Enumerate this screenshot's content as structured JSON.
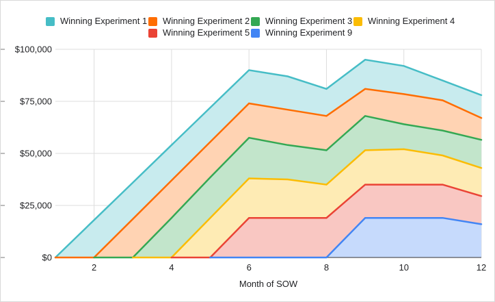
{
  "chart_data": {
    "type": "area",
    "title": "",
    "xlabel": "Month of SOW",
    "ylabel": "",
    "xlim": [
      1,
      12
    ],
    "ylim": [
      0,
      100000
    ],
    "grid": true,
    "legend_position": "top",
    "x": [
      1,
      2,
      3,
      4,
      5,
      6,
      7,
      8,
      9,
      10,
      11,
      12
    ],
    "x_ticks": [
      {
        "value": 2,
        "label": "2"
      },
      {
        "value": 4,
        "label": "4"
      },
      {
        "value": 6,
        "label": "6"
      },
      {
        "value": 8,
        "label": "8"
      },
      {
        "value": 10,
        "label": "10"
      },
      {
        "value": 12,
        "label": "12"
      }
    ],
    "y_ticks": [
      {
        "value": 0,
        "label": "$0"
      },
      {
        "value": 25000,
        "label": "$25,000"
      },
      {
        "value": 50000,
        "label": "$50,000"
      },
      {
        "value": 75000,
        "label": "$75,000"
      },
      {
        "value": 100000,
        "label": "$100,000"
      }
    ],
    "series": [
      {
        "name": "Winning Experiment 1",
        "color": "#46BDC6",
        "fill": "#C8EBEE",
        "values": [
          0,
          18000,
          36000,
          54000,
          72000,
          90000,
          87000,
          81000,
          95000,
          92000,
          85000,
          78000
        ]
      },
      {
        "name": "Winning Experiment 2",
        "color": "#FF6D01",
        "fill": "#FFD3B3",
        "values": [
          0,
          0,
          18500,
          37000,
          55500,
          74000,
          71000,
          68000,
          81000,
          78500,
          75500,
          67000
        ]
      },
      {
        "name": "Winning Experiment 3",
        "color": "#34A853",
        "fill": "#C2E5CB",
        "values": [
          null,
          0,
          0,
          19000,
          38500,
          57500,
          54000,
          51500,
          68000,
          64000,
          61000,
          56500
        ]
      },
      {
        "name": "Winning Experiment 4",
        "color": "#FBBC04",
        "fill": "#FEEBB4",
        "values": [
          null,
          null,
          0,
          0,
          19000,
          38000,
          37500,
          35000,
          51500,
          52000,
          49000,
          43000
        ]
      },
      {
        "name": "Winning Experiment 5",
        "color": "#EA4335",
        "fill": "#F9C7C2",
        "values": [
          null,
          null,
          null,
          0,
          0,
          19000,
          19000,
          19000,
          35000,
          35000,
          35000,
          29500
        ]
      },
      {
        "name": "Winning Experiment 9",
        "color": "#4285F4",
        "fill": "#C6DAFC",
        "values": [
          null,
          null,
          null,
          null,
          0,
          0,
          0,
          0,
          19000,
          19000,
          19000,
          16000
        ]
      }
    ]
  }
}
